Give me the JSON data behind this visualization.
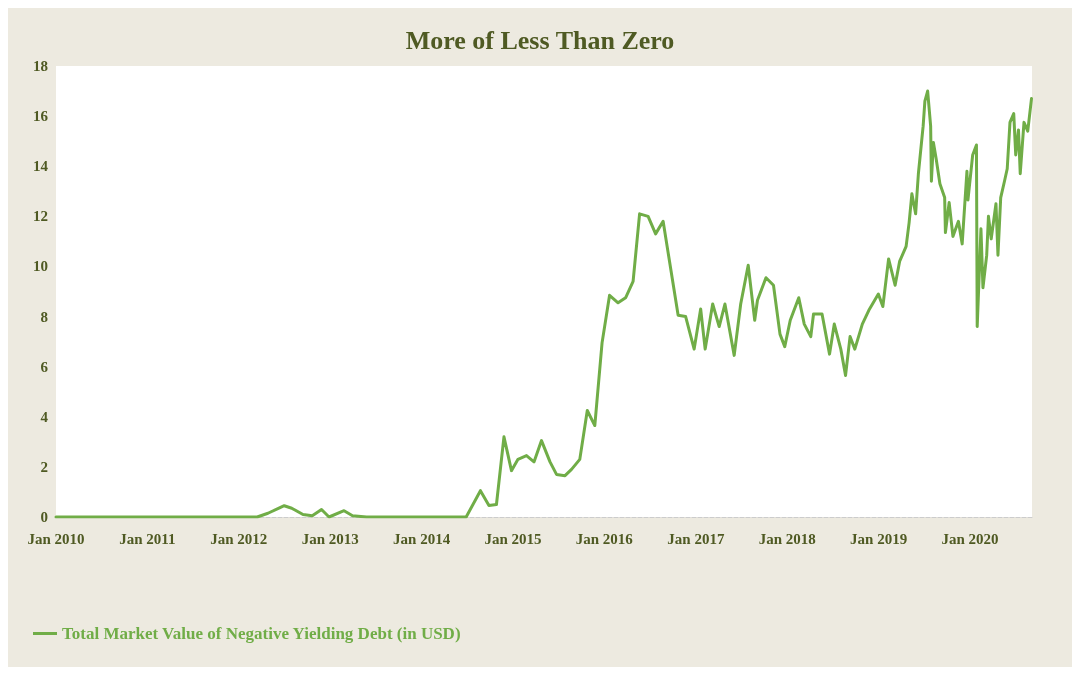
{
  "chart_data": {
    "type": "line",
    "title": "More of Less Than Zero",
    "x": [
      "2010-01-01",
      "2012-03-15",
      "2012-04-27",
      "2012-07-01",
      "2012-07-31",
      "2012-09-14",
      "2012-10-21",
      "2012-11-27",
      "2012-12-27",
      "2013-02-25",
      "2013-03-31",
      "2013-05-26",
      "2014-06-28",
      "2014-08-24",
      "2014-09-27",
      "2014-10-27",
      "2014-11-26",
      "2014-12-26",
      "2015-01-21",
      "2015-02-24",
      "2015-03-26",
      "2015-04-25",
      "2015-05-29",
      "2015-06-24",
      "2015-07-28",
      "2015-08-23",
      "2015-09-25",
      "2015-10-25",
      "2015-11-24",
      "2015-12-23",
      "2016-01-22",
      "2016-02-25",
      "2016-03-26",
      "2016-04-25",
      "2016-05-21",
      "2016-06-24",
      "2016-07-24",
      "2016-08-23",
      "2016-10-22",
      "2016-11-21",
      "2016-12-25",
      "2017-01-20",
      "2017-02-07",
      "2017-03-09",
      "2017-04-04",
      "2017-04-27",
      "2017-06-03",
      "2017-06-29",
      "2017-07-29",
      "2017-08-24",
      "2017-09-04",
      "2017-10-08",
      "2017-11-07",
      "2017-12-03",
      "2017-12-22",
      "2018-01-13",
      "2018-02-16",
      "2018-03-10",
      "2018-04-05",
      "2018-04-16",
      "2018-05-20",
      "2018-06-19",
      "2018-07-08",
      "2018-08-03",
      "2018-08-22",
      "2018-09-09",
      "2018-09-28",
      "2018-10-28",
      "2018-11-23",
      "2018-12-31",
      "2019-01-18",
      "2019-02-10",
      "2019-03-08",
      "2019-03-26",
      "2019-04-21",
      "2019-05-03",
      "2019-05-14",
      "2019-05-29",
      "2019-06-09",
      "2019-06-28",
      "2019-07-05",
      "2019-07-16",
      "2019-07-28",
      "2019-07-31",
      "2019-08-08",
      "2019-08-19",
      "2019-09-03",
      "2019-09-22",
      "2019-09-25",
      "2019-10-10",
      "2019-10-25",
      "2019-11-16",
      "2019-12-01",
      "2019-12-20",
      "2019-12-24",
      "2020-01-12",
      "2020-01-27",
      "2020-01-30",
      "2020-02-14",
      "2020-02-22",
      "2020-03-08",
      "2020-03-15",
      "2020-03-26",
      "2020-04-14",
      "2020-04-22",
      "2020-05-03",
      "2020-05-18",
      "2020-05-29",
      "2020-06-09",
      "2020-06-24",
      "2020-07-02",
      "2020-07-13",
      "2020-07-20",
      "2020-08-04",
      "2020-08-19",
      "2020-09-03"
    ],
    "series": [
      {
        "name": "Total Market Value of Negative Yielding Debt (in USD)",
        "color": "#70ad47",
        "values": [
          0,
          0,
          0.15,
          0.45,
          0.35,
          0.1,
          0.05,
          0.3,
          0,
          0.25,
          0.05,
          0,
          0,
          1.05,
          0.46,
          0.5,
          3.2,
          1.85,
          2.3,
          2.45,
          2.2,
          3.05,
          2.2,
          1.7,
          1.65,
          1.9,
          2.3,
          4.25,
          3.65,
          6.95,
          8.85,
          8.55,
          8.75,
          9.4,
          12.1,
          12.0,
          11.3,
          11.8,
          8.05,
          8.0,
          6.7,
          8.3,
          6.7,
          8.5,
          7.6,
          8.5,
          6.45,
          8.5,
          10.05,
          7.85,
          8.65,
          9.55,
          9.25,
          7.3,
          6.8,
          7.85,
          8.75,
          7.7,
          7.2,
          8.1,
          8.1,
          6.5,
          7.7,
          6.7,
          5.65,
          7.2,
          6.7,
          7.7,
          8.25,
          8.9,
          8.4,
          10.3,
          9.25,
          10.2,
          10.8,
          11.75,
          12.9,
          12.1,
          13.7,
          15.6,
          16.6,
          17.0,
          15.6,
          13.4,
          14.95,
          14.3,
          13.3,
          12.75,
          11.35,
          12.55,
          11.2,
          11.8,
          10.9,
          13.8,
          12.65,
          14.45,
          14.85,
          7.6,
          11.5,
          9.15,
          10.45,
          12.0,
          11.1,
          12.5,
          10.45,
          12.75,
          13.4,
          13.9,
          15.75,
          16.1,
          14.45,
          15.45,
          13.7,
          15.75,
          15.4,
          16.7
        ]
      }
    ],
    "xlim": [
      "2010-01-01",
      "2020-09-05"
    ],
    "xticks": [
      {
        "value": "2010-01-01",
        "label": "Jan 2010"
      },
      {
        "value": "2011-01-01",
        "label": "Jan 2011"
      },
      {
        "value": "2012-01-01",
        "label": "Jan 2012"
      },
      {
        "value": "2013-01-01",
        "label": "Jan 2013"
      },
      {
        "value": "2014-01-01",
        "label": "Jan 2014"
      },
      {
        "value": "2015-01-01",
        "label": "Jan 2015"
      },
      {
        "value": "2016-01-01",
        "label": "Jan 2016"
      },
      {
        "value": "2017-01-01",
        "label": "Jan 2017"
      },
      {
        "value": "2018-01-01",
        "label": "Jan 2018"
      },
      {
        "value": "2019-01-01",
        "label": "Jan 2019"
      },
      {
        "value": "2020-01-01",
        "label": "Jan 2020"
      }
    ],
    "ylim": [
      0,
      18
    ],
    "yticks": [
      0,
      2,
      4,
      6,
      8,
      10,
      12,
      14,
      16,
      18
    ],
    "grid": false,
    "legend": "bottom left",
    "marker": "none",
    "line_style": "solid"
  }
}
